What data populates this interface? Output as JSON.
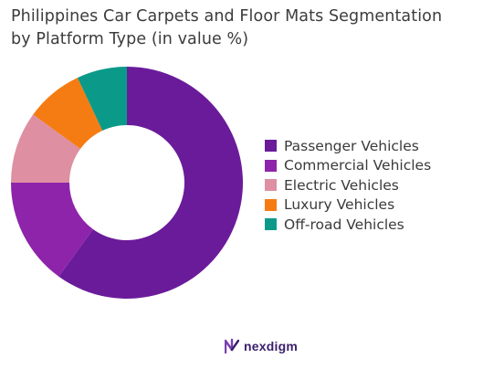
{
  "title_lines": [
    "Philippines Car Carpets and Floor Mats Segmentation",
    "by Platform Type (in value %)"
  ],
  "brand": {
    "name": "nexdigm",
    "logo_icon": "nexdigm-logo-icon"
  },
  "colors": {
    "passenger": "#6a1b9a",
    "commercial": "#8e24aa",
    "electric": "#de8fa1",
    "luxury": "#f57c13",
    "offroad": "#0b9a8a",
    "brand": "#3a1f6b"
  },
  "chart_data": {
    "type": "pie",
    "donut": true,
    "title": "Philippines Car Carpets and Floor Mats Segmentation by Platform Type (in value %)",
    "unit": "%",
    "legend_position": "right",
    "categories": [
      "Passenger Vehicles",
      "Commercial Vehicles",
      "Electric Vehicles",
      "Luxury Vehicles",
      "Off-road Vehicles"
    ],
    "values": [
      60,
      15,
      10,
      8,
      7
    ],
    "colors": [
      "#6a1b9a",
      "#8e24aa",
      "#de8fa1",
      "#f57c13",
      "#0b9a8a"
    ]
  }
}
